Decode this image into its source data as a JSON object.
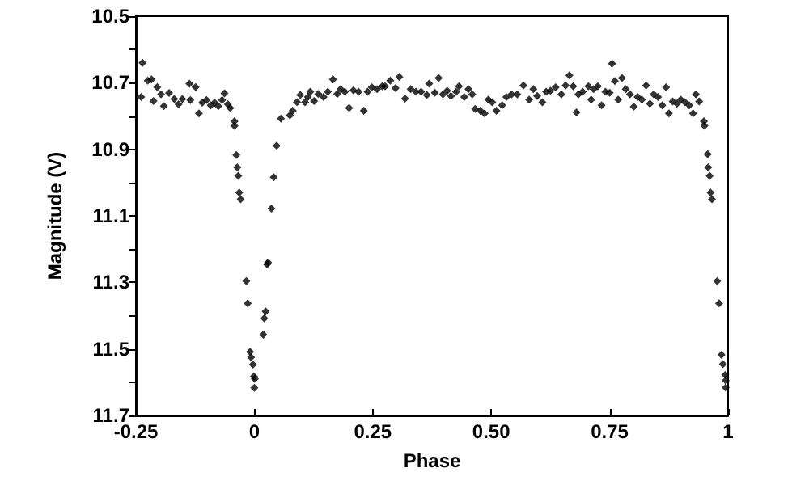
{
  "chart_data": {
    "type": "scatter",
    "xlabel": "Phase",
    "ylabel": "Magnitude (V)",
    "xlim": [
      -0.25,
      1
    ],
    "xticks": [
      -0.25,
      0,
      0.25,
      {
        "value": 0.5,
        "label": "0.50"
      },
      {
        "value": 0.75,
        "label": "0.75"
      },
      1
    ],
    "ylim": [
      11.7,
      10.5
    ],
    "yticks": [
      10.5,
      {
        "value": 10.6,
        "label": null
      },
      10.7,
      {
        "value": 10.8,
        "label": null
      },
      10.9,
      {
        "value": 11.0,
        "label": null
      },
      11.1,
      {
        "value": 11.2,
        "label": null
      },
      11.3,
      {
        "value": 11.4,
        "label": null
      },
      11.5,
      {
        "value": 11.6,
        "label": null
      },
      11.7
    ],
    "grid": false,
    "marker": "diamond",
    "series": [
      {
        "color": "#000000",
        "x": [
          -0.236,
          -0.239,
          -0.225,
          -0.217,
          -0.213,
          -0.205,
          -0.197,
          -0.191,
          -0.18,
          -0.169,
          -0.16,
          -0.152,
          -0.137,
          -0.135,
          -0.124,
          -0.117,
          -0.11,
          -0.101,
          -0.092,
          -0.084,
          -0.076,
          -0.068,
          -0.063,
          -0.056,
          -0.051,
          -0.042,
          -0.042,
          -0.038,
          -0.036,
          -0.034,
          -0.032,
          -0.029,
          -0.017,
          -0.014,
          -0.009,
          -0.007,
          -0.003,
          -0.001,
          0.001,
          0,
          0.019,
          0.021,
          0.024,
          0.027,
          0.029,
          0.036,
          0.041,
          0.047,
          0.056,
          0.075,
          0.081,
          0.09,
          0.097,
          0.107,
          0.113,
          0.118,
          0.126,
          0.135,
          0.146,
          0.155,
          0.166,
          0.175,
          0.182,
          0.191,
          0.2,
          0.209,
          0.22,
          0.231,
          0.239,
          0.248,
          0.259,
          0.27,
          0.276,
          0.287,
          0.298,
          0.306,
          0.318,
          0.33,
          0.341,
          0.352,
          0.364,
          0.369,
          0.381,
          0.389,
          0.398,
          0.407,
          0.415,
          0.426,
          0.432,
          0.443,
          0.452,
          0.46,
          0.466,
          0.477,
          0.486,
          0.494,
          0.502,
          0.511,
          0.523,
          0.532,
          0.543,
          0.555,
          0.568,
          0.58,
          0.589,
          0.597,
          0.608,
          0.616,
          0.625,
          0.636,
          0.648,
          0.657,
          0.665,
          0.673,
          0.68,
          0.684,
          0.693,
          0.705,
          0.711,
          0.716,
          0.725,
          0.733,
          0.741,
          0.75,
          0.755,
          0.761,
          0.768,
          0.776,
          0.784,
          0.793,
          0.801,
          0.809,
          0.818,
          0.827,
          0.835,
          0.843,
          0.852,
          0.861,
          0.869,
          0.875,
          0.883,
          0.892,
          0.9,
          0.909,
          0.918,
          0.926,
          0.932,
          0.939,
          0.949,
          0.95,
          0.957,
          0.958,
          0.961,
          0.963,
          0.966,
          0.977,
          0.981,
          0.986,
          0.989,
          0.994,
          0.995,
          0.995
        ],
        "values": [
          10.64,
          10.743,
          10.694,
          10.69,
          10.755,
          10.713,
          10.735,
          10.77,
          10.731,
          10.749,
          10.765,
          10.749,
          10.703,
          10.752,
          10.713,
          10.792,
          10.76,
          10.752,
          10.768,
          10.76,
          10.77,
          10.752,
          10.732,
          10.765,
          10.776,
          10.816,
          10.83,
          10.917,
          10.954,
          10.98,
          11.03,
          11.05,
          11.296,
          11.363,
          11.509,
          11.525,
          11.547,
          11.583,
          11.59,
          11.617,
          11.457,
          11.408,
          11.387,
          11.246,
          11.24,
          11.078,
          10.984,
          10.889,
          10.808,
          10.798,
          10.784,
          10.758,
          10.737,
          10.759,
          10.743,
          10.727,
          10.755,
          10.734,
          10.743,
          10.727,
          10.69,
          10.734,
          10.719,
          10.727,
          10.776,
          10.723,
          10.727,
          10.784,
          10.727,
          10.714,
          10.719,
          10.711,
          10.711,
          10.694,
          10.716,
          10.683,
          10.748,
          10.719,
          10.727,
          10.727,
          10.737,
          10.703,
          10.73,
          10.686,
          10.735,
          10.724,
          10.74,
          10.727,
          10.711,
          10.743,
          10.719,
          10.735,
          10.779,
          10.784,
          10.792,
          10.751,
          10.759,
          10.784,
          10.768,
          10.743,
          10.735,
          10.735,
          10.708,
          10.751,
          10.719,
          10.74,
          10.759,
          10.727,
          10.724,
          10.714,
          10.735,
          10.708,
          10.678,
          10.711,
          10.789,
          10.735,
          10.727,
          10.711,
          10.751,
          10.719,
          10.711,
          10.768,
          10.727,
          10.73,
          10.643,
          10.695,
          10.751,
          10.686,
          10.719,
          10.735,
          10.772,
          10.743,
          10.751,
          10.708,
          10.763,
          10.735,
          10.743,
          10.768,
          10.714,
          10.792,
          10.756,
          10.763,
          10.751,
          10.759,
          10.768,
          10.792,
          10.735,
          10.756,
          10.816,
          10.829,
          10.915,
          10.954,
          10.98,
          11.03,
          11.05,
          11.296,
          11.363,
          11.518,
          11.546,
          11.578,
          11.595,
          11.616
        ]
      }
    ]
  }
}
